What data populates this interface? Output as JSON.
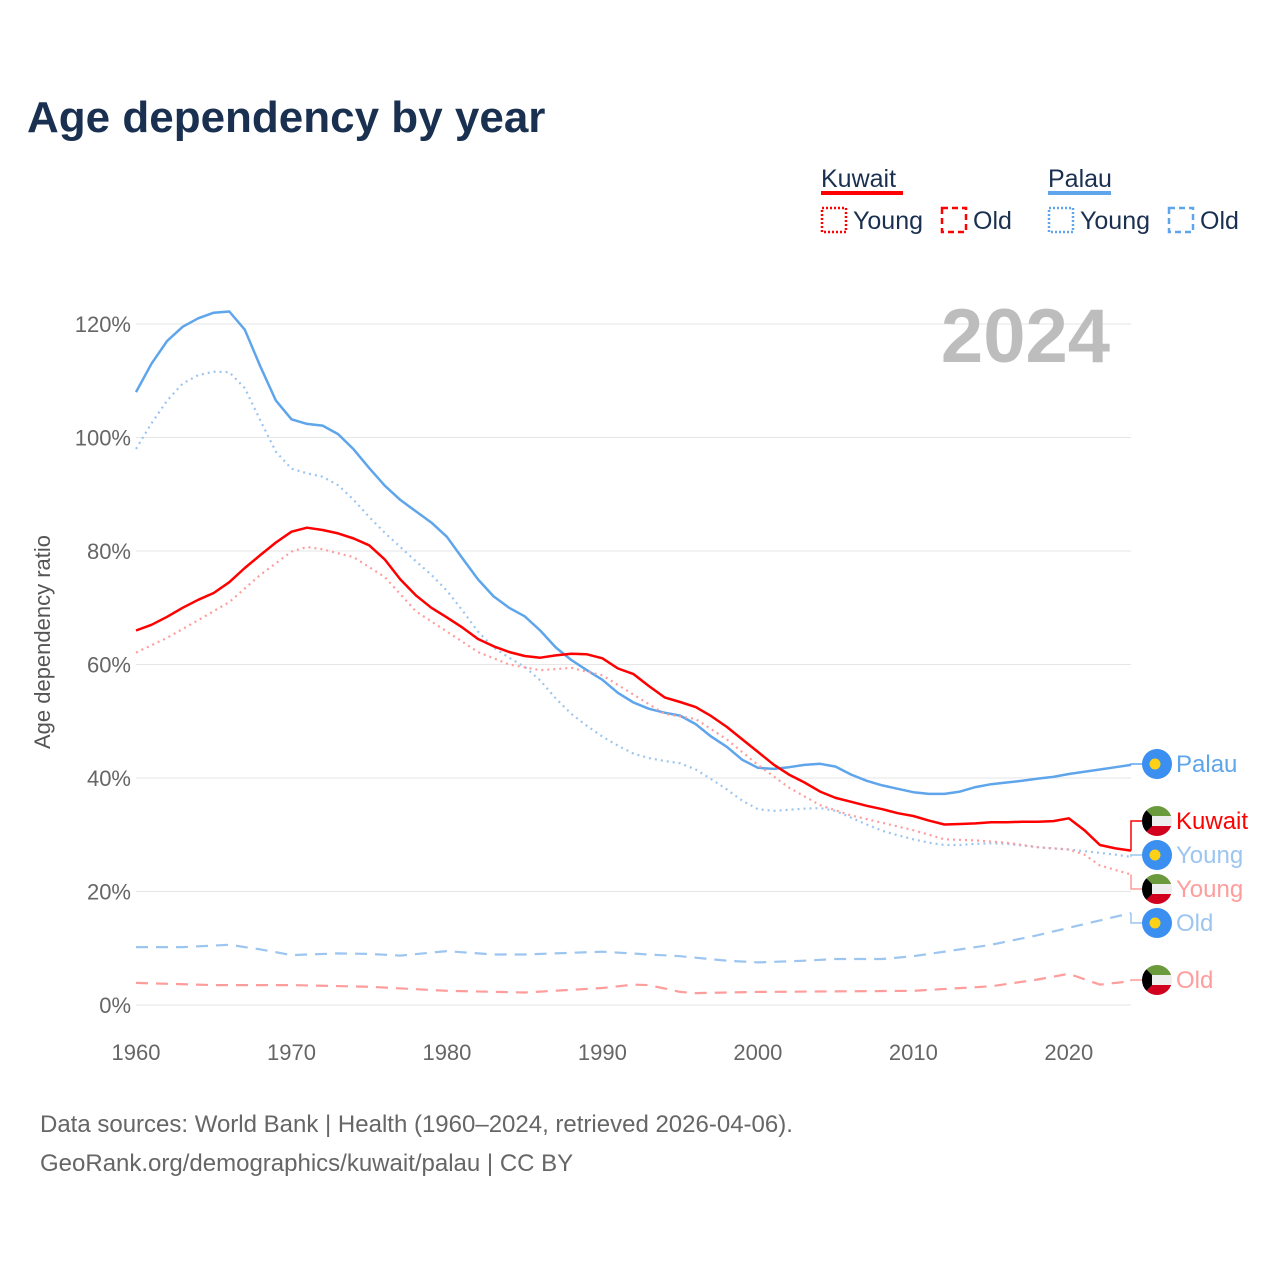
{
  "title": "Age dependency by year",
  "year_badge": "2024",
  "source_line1": "Data sources: World Bank | Health (1960–2024, retrieved 2026-04-06).",
  "source_line2": "GeoRank.org/demographics/kuwait/palau | CC BY",
  "legend": {
    "groups": [
      {
        "country": "Kuwait",
        "color": "#ff0000",
        "young": "Young",
        "old": "Old"
      },
      {
        "country": "Palau",
        "color": "#5ea5ec",
        "young": "Young",
        "old": "Old"
      }
    ]
  },
  "end_labels": {
    "palau": "Palau",
    "kuwait": "Kuwait",
    "palau_young": "Young",
    "kuwait_young": "Young",
    "palau_old": "Old",
    "kuwait_old": "Old"
  },
  "chart_data": {
    "type": "line",
    "title": "Age dependency by year",
    "xlabel": "",
    "ylabel": "Age dependency ratio",
    "xlim": [
      1960,
      2024
    ],
    "ylim": [
      0,
      120
    ],
    "x_ticks": [
      "1960",
      "1970",
      "1980",
      "1990",
      "2000",
      "2010",
      "2020"
    ],
    "y_ticks": [
      "0%",
      "20%",
      "40%",
      "60%",
      "80%",
      "100%",
      "120%"
    ],
    "grid": true,
    "series": [
      {
        "name": "Palau",
        "style": "solid",
        "color": "#5ea5ec",
        "x": [
          1960,
          1961,
          1962,
          1963,
          1964,
          1965,
          1966,
          1967,
          1968,
          1969,
          1970,
          1971,
          1972,
          1973,
          1974,
          1975,
          1976,
          1977,
          1978,
          1979,
          1980,
          1981,
          1982,
          1983,
          1984,
          1985,
          1986,
          1987,
          1988,
          1989,
          1990,
          1991,
          1992,
          1993,
          1994,
          1995,
          1996,
          1997,
          1998,
          1999,
          2000,
          2001,
          2002,
          2003,
          2004,
          2005,
          2006,
          2007,
          2008,
          2009,
          2010,
          2011,
          2012,
          2013,
          2014,
          2015,
          2016,
          2017,
          2018,
          2019,
          2020,
          2021,
          2022,
          2023,
          2024
        ],
        "y": [
          108,
          113,
          117,
          119.5,
          121,
          122,
          122.2,
          119,
          112.5,
          106.5,
          103.2,
          102.4,
          102.1,
          100.6,
          97.9,
          94.6,
          91.5,
          89,
          87,
          85,
          82.5,
          78.7,
          75,
          72,
          70,
          68.5,
          66,
          63,
          60.8,
          59,
          57.3,
          55,
          53.3,
          52.2,
          51.5,
          51,
          49.5,
          47.3,
          45.5,
          43.2,
          41.8,
          41.6,
          41.9,
          42.3,
          42.5,
          42,
          40.6,
          39.5,
          38.7,
          38.1,
          37.5,
          37.2,
          37.2,
          37.6,
          38.4,
          38.9,
          39.2,
          39.5,
          39.9,
          40.2,
          40.7,
          41.1,
          41.5,
          41.9,
          42.3
        ]
      },
      {
        "name": "Palau Young",
        "style": "dotted",
        "color": "#9cc5f0",
        "x": [
          1960,
          1961,
          1962,
          1963,
          1964,
          1965,
          1966,
          1967,
          1968,
          1969,
          1970,
          1971,
          1972,
          1973,
          1974,
          1975,
          1976,
          1977,
          1978,
          1979,
          1980,
          1981,
          1982,
          1983,
          1984,
          1985,
          1986,
          1987,
          1988,
          1989,
          1990,
          1991,
          1992,
          1993,
          1994,
          1995,
          1996,
          1997,
          1998,
          1999,
          2000,
          2001,
          2002,
          2003,
          2004,
          2005,
          2006,
          2007,
          2008,
          2009,
          2010,
          2011,
          2012,
          2013,
          2014,
          2015,
          2016,
          2017,
          2018,
          2019,
          2020,
          2021,
          2022,
          2023,
          2024
        ],
        "y": [
          98,
          102.5,
          106.5,
          109.5,
          111,
          111.6,
          111.5,
          108.7,
          103,
          97.5,
          94.5,
          93.7,
          93.1,
          91.6,
          89,
          86,
          83.2,
          80.7,
          78.2,
          75.8,
          73,
          69.5,
          65.8,
          63,
          61.2,
          59.6,
          57.2,
          54,
          51.3,
          49.2,
          47.3,
          45.7,
          44.3,
          43.5,
          43,
          42.6,
          41.5,
          39.8,
          38,
          36,
          34.5,
          34.2,
          34.4,
          34.6,
          34.7,
          34.2,
          33,
          31.8,
          30.7,
          29.9,
          29.2,
          28.6,
          28.2,
          28.2,
          28.4,
          28.5,
          28.4,
          28.1,
          27.8,
          27.6,
          27.4,
          27.1,
          26.8,
          26.5,
          26.1
        ]
      },
      {
        "name": "Palau Old",
        "style": "dashed",
        "color": "#9cc5f0",
        "x": [
          1960,
          1963,
          1966,
          1968,
          1970,
          1973,
          1975,
          1977,
          1980,
          1983,
          1985,
          1988,
          1990,
          1993,
          1995,
          1998,
          2000,
          2003,
          2005,
          2008,
          2010,
          2013,
          2015,
          2018,
          2020,
          2022,
          2024
        ],
        "y": [
          10.2,
          10.2,
          10.6,
          9.8,
          8.8,
          9.1,
          9.0,
          8.7,
          9.5,
          8.9,
          8.9,
          9.2,
          9.4,
          8.9,
          8.6,
          7.8,
          7.5,
          7.8,
          8.1,
          8.1,
          8.6,
          9.8,
          10.6,
          12.3,
          13.6,
          14.9,
          16.2
        ]
      },
      {
        "name": "Kuwait",
        "style": "solid",
        "color": "#ff0000",
        "x": [
          1960,
          1961,
          1962,
          1963,
          1964,
          1965,
          1966,
          1967,
          1968,
          1969,
          1970,
          1971,
          1972,
          1973,
          1974,
          1975,
          1976,
          1977,
          1978,
          1979,
          1980,
          1981,
          1982,
          1983,
          1984,
          1985,
          1986,
          1987,
          1988,
          1989,
          1990,
          1991,
          1992,
          1993,
          1994,
          1995,
          1996,
          1997,
          1998,
          1999,
          2000,
          2001,
          2002,
          2003,
          2004,
          2005,
          2006,
          2007,
          2008,
          2009,
          2010,
          2011,
          2012,
          2013,
          2014,
          2015,
          2016,
          2017,
          2018,
          2019,
          2020,
          2021,
          2022,
          2023,
          2024
        ],
        "y": [
          66,
          67,
          68.4,
          70,
          71.4,
          72.6,
          74.5,
          77,
          79.3,
          81.5,
          83.4,
          84.1,
          83.7,
          83.1,
          82.2,
          81,
          78.5,
          75,
          72.2,
          70,
          68.3,
          66.5,
          64.5,
          63.2,
          62.2,
          61.5,
          61.2,
          61.6,
          61.9,
          61.8,
          61.1,
          59.3,
          58.3,
          56.2,
          54.2,
          53.4,
          52.5,
          50.9,
          49,
          46.8,
          44.6,
          42.4,
          40.6,
          39.2,
          37.6,
          36.5,
          35.8,
          35.1,
          34.5,
          33.8,
          33.3,
          32.5,
          31.8,
          31.9,
          32,
          32.2,
          32.2,
          32.3,
          32.3,
          32.4,
          32.9,
          30.8,
          28.2,
          27.6,
          27.2
        ]
      },
      {
        "name": "Kuwait Young",
        "style": "dotted",
        "color": "#ff9c9c",
        "x": [
          1960,
          1962,
          1964,
          1966,
          1968,
          1970,
          1971,
          1972,
          1974,
          1976,
          1978,
          1980,
          1982,
          1984,
          1986,
          1988,
          1990,
          1992,
          1994,
          1996,
          1998,
          2000,
          2002,
          2004,
          2006,
          2008,
          2010,
          2012,
          2014,
          2016,
          2018,
          2020,
          2021,
          2022,
          2024
        ],
        "y": [
          62.1,
          64.7,
          67.8,
          71,
          75.8,
          79.9,
          80.7,
          80.3,
          78.9,
          75.4,
          69.4,
          65.8,
          62.2,
          60,
          59,
          59.4,
          58.1,
          54.7,
          51.3,
          50.4,
          46.8,
          42.3,
          38.3,
          35.2,
          33.4,
          32.1,
          30.8,
          29.2,
          29,
          28.6,
          27.8,
          27.4,
          26.5,
          24.6,
          23
        ]
      },
      {
        "name": "Kuwait Old",
        "style": "dashed",
        "color": "#ff9c9c",
        "x": [
          1960,
          1965,
          1970,
          1975,
          1980,
          1985,
          1990,
          1992,
          1993,
          1995,
          1996,
          2000,
          2005,
          2010,
          2015,
          2018,
          2020,
          2022,
          2024
        ],
        "y": [
          3.9,
          3.5,
          3.5,
          3.2,
          2.5,
          2.2,
          3.0,
          3.6,
          3.5,
          2.3,
          2.1,
          2.3,
          2.4,
          2.5,
          3.3,
          4.5,
          5.5,
          3.6,
          4.2
        ]
      }
    ]
  }
}
